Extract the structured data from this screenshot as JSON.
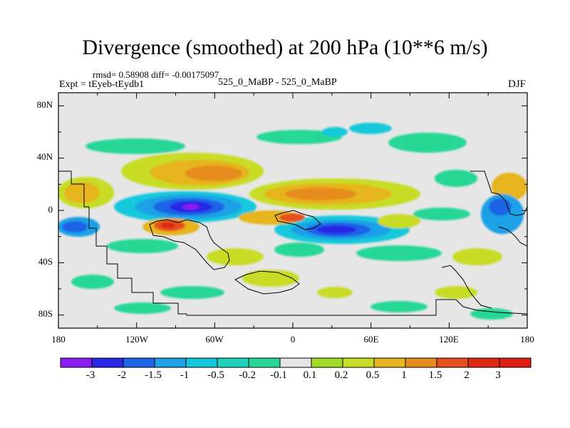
{
  "title": "Divergence (smoothed) at 200 hPa (10**6 m/s)",
  "stats": "rmsd= 0.58908 diff= -0.00175097",
  "expt": "Expt = tEyeb-tEydb1",
  "experiment_id": "525_0_MaBP - 525_0_MaBP",
  "season": "DJF",
  "lat_labels": [
    "80N",
    "40N",
    "0",
    "40S",
    "80S"
  ],
  "lon_labels": [
    "180",
    "120W",
    "60W",
    "0",
    "60E",
    "120E",
    "180"
  ],
  "colorbar": {
    "labels": [
      "-3",
      "-2",
      "-1.5",
      "-1",
      "-0.5",
      "-0.2",
      "-0.1",
      "0.1",
      "0.2",
      "0.5",
      "1",
      "1.5",
      "2",
      "3"
    ],
    "colors": [
      "#8a1ef0",
      "#2828e6",
      "#1e64e6",
      "#1ea0e6",
      "#14c8dc",
      "#1ed2be",
      "#28d796",
      "#e6e6e6",
      "#a0dc28",
      "#c8dc28",
      "#e6b41e",
      "#e68c1e",
      "#e6501e",
      "#dc2814",
      "#dc1e14"
    ]
  },
  "colors": {
    "background": "#e6e6e6",
    "frame": "#000000"
  }
}
